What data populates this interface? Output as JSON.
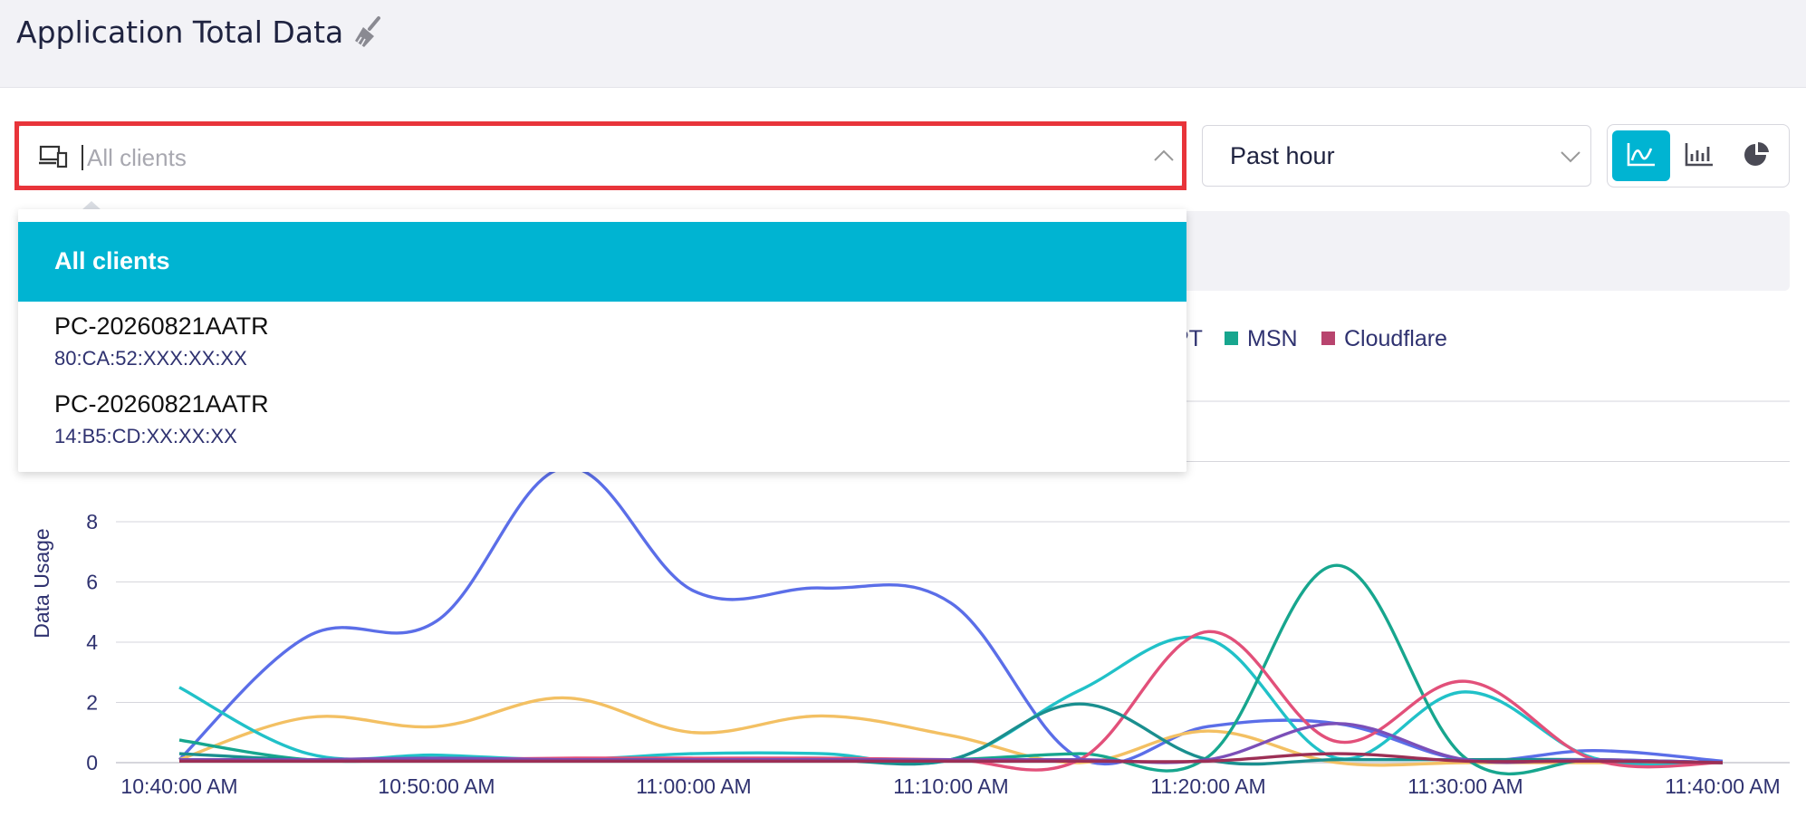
{
  "header": {
    "title": "Application Total Data",
    "clear_icon": "broom-icon"
  },
  "client_select": {
    "placeholder": "All clients",
    "icon": "devices-icon",
    "expanded": true
  },
  "time_select": {
    "value": "Past hour",
    "icon": "chevron-down-icon"
  },
  "view_toggle": {
    "active": "line",
    "options": [
      "line-chart",
      "bar-chart",
      "pie-chart"
    ],
    "accent": "#00b4d2"
  },
  "dropdown": {
    "items": [
      {
        "label": "All clients",
        "selected": true
      },
      {
        "label": "PC-20260821AATR",
        "mac": "80:CA:52:XXX:XX:XX"
      },
      {
        "label": "PC-20260821AATR",
        "mac": "14:B5:CD:XX:XX:XX"
      }
    ]
  },
  "legend": {
    "partial_label": "PT",
    "items": [
      {
        "label": "MSN",
        "color": "#17a68e"
      },
      {
        "label": "Cloudflare",
        "color": "#b8446e"
      }
    ]
  },
  "highlight_color": "#e8343a",
  "chart_data": {
    "type": "line",
    "ylabel": "Data Usage",
    "xlabel": "",
    "yticks": [
      "0",
      "2",
      "4",
      "6",
      "8"
    ],
    "ylim": [
      0,
      12
    ],
    "x": [
      "10:40:00 AM",
      "10:45",
      "10:50:00 AM",
      "10:55",
      "11:00:00 AM",
      "11:05",
      "11:10:00 AM",
      "11:15",
      "11:20:00 AM",
      "11:25",
      "11:30:00 AM",
      "11:35",
      "11:40:00 AM"
    ],
    "xtick_labels": [
      "10:40:00 AM",
      "10:50:00 AM",
      "11:00:00 AM",
      "11:10:00 AM",
      "11:20:00 AM",
      "11:30:00 AM",
      "11:40:00 AM"
    ],
    "grid": true,
    "series": [
      {
        "color": "#5b6ee8",
        "values": [
          0.1,
          4.2,
          4.7,
          9.8,
          5.7,
          5.8,
          5.3,
          0.15,
          1.2,
          1.3,
          0.1,
          0.4,
          0.05
        ]
      },
      {
        "color": "#f3c063",
        "values": [
          0.1,
          1.5,
          1.2,
          2.15,
          1.0,
          1.55,
          0.9,
          0.0,
          1.05,
          0.0,
          0.0,
          0.0,
          0.0
        ]
      },
      {
        "color": "#21c1c8",
        "values": [
          2.5,
          0.3,
          0.25,
          0.1,
          0.3,
          0.3,
          0.1,
          2.4,
          4.1,
          0.15,
          2.35,
          0.15,
          0.0
        ]
      },
      {
        "color": "#17a68e",
        "values": [
          0.75,
          0.1,
          0.1,
          0.1,
          0.1,
          0.15,
          0.1,
          0.3,
          0.2,
          6.55,
          0.15,
          0.1,
          0.0
        ]
      },
      {
        "color": "#e2507a",
        "values": [
          0.1,
          0.1,
          0.1,
          0.15,
          0.15,
          0.15,
          0.1,
          0.1,
          4.35,
          0.7,
          2.7,
          0.1,
          0.0
        ]
      },
      {
        "color": "#1a8f8f",
        "values": [
          0.3,
          0.1,
          0.1,
          0.1,
          0.1,
          0.1,
          0.1,
          1.95,
          0.1,
          0.1,
          0.1,
          0.1,
          0.0
        ]
      },
      {
        "color": "#7b4fb8",
        "values": [
          0.1,
          0.1,
          0.15,
          0.1,
          0.1,
          0.1,
          0.1,
          0.1,
          0.1,
          1.3,
          0.1,
          0.1,
          0.0
        ]
      },
      {
        "color": "#9c2f55",
        "values": [
          0.05,
          0.05,
          0.05,
          0.05,
          0.05,
          0.05,
          0.05,
          0.05,
          0.05,
          0.3,
          0.05,
          0.05,
          0.0
        ]
      }
    ]
  }
}
